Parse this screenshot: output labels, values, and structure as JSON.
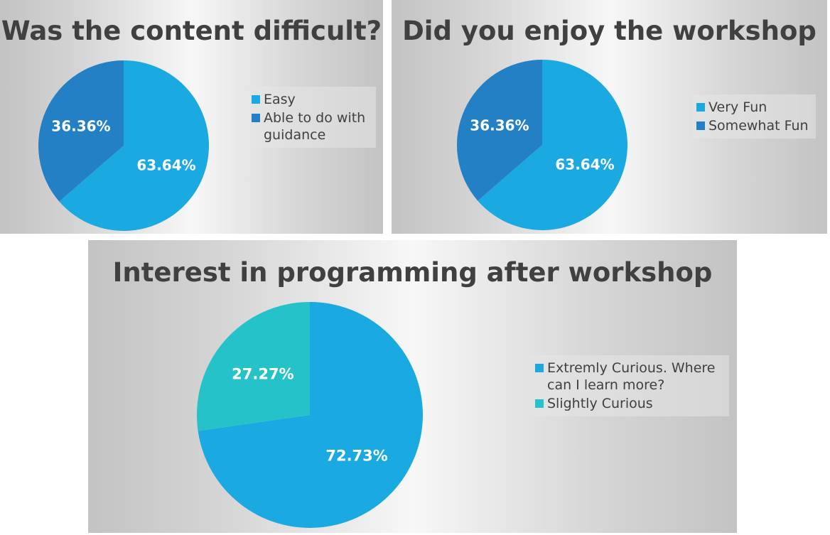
{
  "chart_data": [
    {
      "type": "pie",
      "title": "Was the content difficult?",
      "categories": [
        "Easy",
        "Able to do with guidance"
      ],
      "values": [
        63.64,
        36.36
      ],
      "data_labels": [
        "63.64%",
        "36.36%"
      ],
      "colors": [
        "#1BA9E1",
        "#2480C4"
      ],
      "legend_position": "right"
    },
    {
      "type": "pie",
      "title": "Did you enjoy the workshop",
      "categories": [
        "Very Fun",
        "Somewhat Fun"
      ],
      "values": [
        63.64,
        36.36
      ],
      "data_labels": [
        "63.64%",
        "36.36%"
      ],
      "colors": [
        "#1BA9E1",
        "#2480C4"
      ],
      "legend_position": "right"
    },
    {
      "type": "pie",
      "title": "Interest in programming after workshop",
      "categories": [
        "Extremly Curious. Where can I learn more?",
        "Slightly Curious"
      ],
      "values": [
        72.73,
        27.27
      ],
      "data_labels": [
        "72.73%",
        "27.27%"
      ],
      "colors": [
        "#1BA9E1",
        "#26C2C9"
      ],
      "legend_position": "right"
    }
  ]
}
